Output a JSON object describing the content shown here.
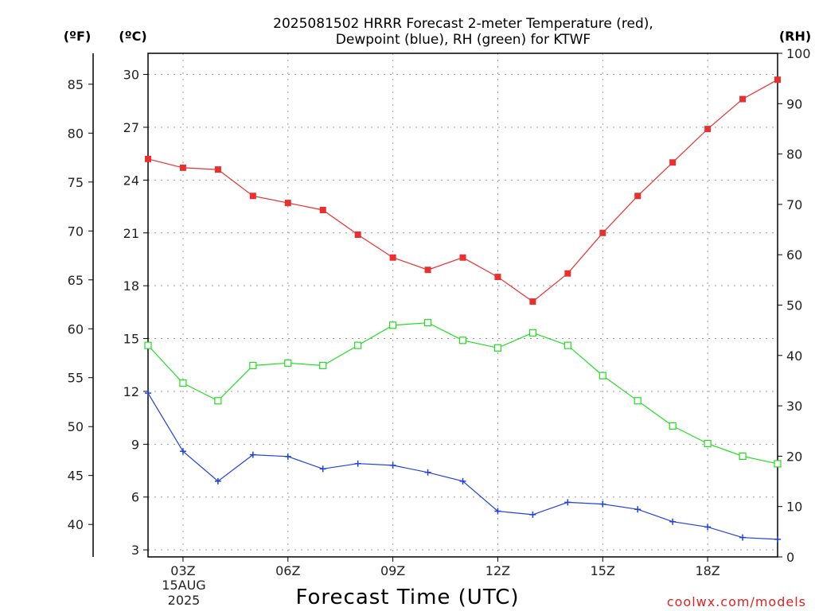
{
  "title_line1": "2025081502 HRRR Forecast 2-meter Temperature (red),",
  "title_line2": "Dewpoint (blue), RH (green) for KTWF",
  "unit_f": "(ºF)",
  "unit_c": "(ºC)",
  "unit_rh": "(RH)",
  "xlabel": "Forecast Time (UTC)",
  "date_line1": "15AUG",
  "date_line2": "2025",
  "credit": "coolwx.com/models",
  "colors": {
    "temp": "#e83030",
    "dewpoint": "#2040e0",
    "rh": "#20dd20"
  },
  "chart_data": {
    "type": "line",
    "x_hours": [
      2,
      3,
      4,
      5,
      6,
      7,
      8,
      9,
      10,
      11,
      12,
      13,
      14,
      15,
      16,
      17,
      18,
      19,
      20
    ],
    "x_tick_hours": [
      3,
      6,
      9,
      12,
      15,
      18
    ],
    "x_tick_labels": [
      "03Z",
      "06Z",
      "09Z",
      "12Z",
      "15Z",
      "18Z"
    ],
    "xlim_hours": [
      2,
      20
    ],
    "celsius_ticks": [
      3,
      6,
      9,
      12,
      15,
      18,
      21,
      24,
      27,
      30
    ],
    "fahrenheit_ticks": [
      40,
      45,
      50,
      55,
      60,
      65,
      70,
      75,
      80,
      85
    ],
    "rh_ticks": [
      0,
      10,
      20,
      30,
      40,
      50,
      60,
      70,
      80,
      90,
      100
    ],
    "celsius_range": [
      2.6,
      31.2
    ],
    "rh_range": [
      0,
      100
    ],
    "grid": true,
    "series": [
      {
        "name": "Temperature",
        "axis": "celsius",
        "marker": "filled-square",
        "values": [
          25.2,
          24.7,
          24.6,
          23.1,
          22.7,
          22.3,
          20.9,
          19.6,
          18.9,
          19.6,
          18.5,
          17.1,
          18.7,
          21.0,
          23.1,
          25.0,
          26.9,
          28.6,
          29.7
        ]
      },
      {
        "name": "Dewpoint",
        "axis": "celsius",
        "marker": "plus",
        "values": [
          11.9,
          8.6,
          6.9,
          8.4,
          8.3,
          7.6,
          7.9,
          7.8,
          7.4,
          6.9,
          5.2,
          5.0,
          5.7,
          5.6,
          5.3,
          4.6,
          4.3,
          3.7,
          3.6
        ]
      },
      {
        "name": "RH",
        "axis": "rh",
        "marker": "open-square",
        "values": [
          42,
          34.5,
          31,
          38,
          38.5,
          38,
          42,
          46,
          46.5,
          43,
          41.5,
          44.5,
          42,
          36,
          31,
          26,
          22.5,
          20,
          18.5
        ]
      }
    ]
  }
}
